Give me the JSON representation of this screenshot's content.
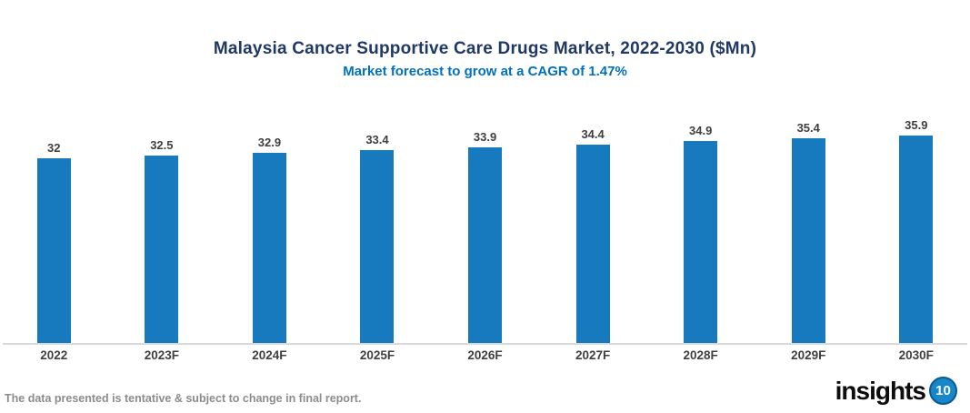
{
  "chart_data": {
    "type": "bar",
    "title": "Malaysia Cancer Supportive Care Drugs Market, 2022-2030 ($Mn)",
    "subtitle": "Market forecast to grow at a CAGR of 1.47%",
    "categories": [
      "2022",
      "2023F",
      "2024F",
      "2025F",
      "2026F",
      "2027F",
      "2028F",
      "2029F",
      "2030F"
    ],
    "values": [
      32,
      32.5,
      32.9,
      33.4,
      33.9,
      34.4,
      34.9,
      35.4,
      35.9
    ],
    "unit": "$Mn",
    "cagr": "1.47%",
    "bar_color": "#1779BE",
    "value_label_color": "#3F3F3F",
    "x_axis_line_color": "#D9D9D9",
    "grid": false,
    "legend": "none",
    "value_labels_shown": true,
    "y_axis_shown": false
  },
  "header": {
    "title_color": "#1F3864",
    "subtitle_color": "#0070C0"
  },
  "footer": {
    "note": "The data presented is tentative & subject to change in final report.",
    "note_color": "#8C8C8C"
  },
  "logo": {
    "word": "insights",
    "number": "10",
    "badge_color": "#1787C9"
  }
}
